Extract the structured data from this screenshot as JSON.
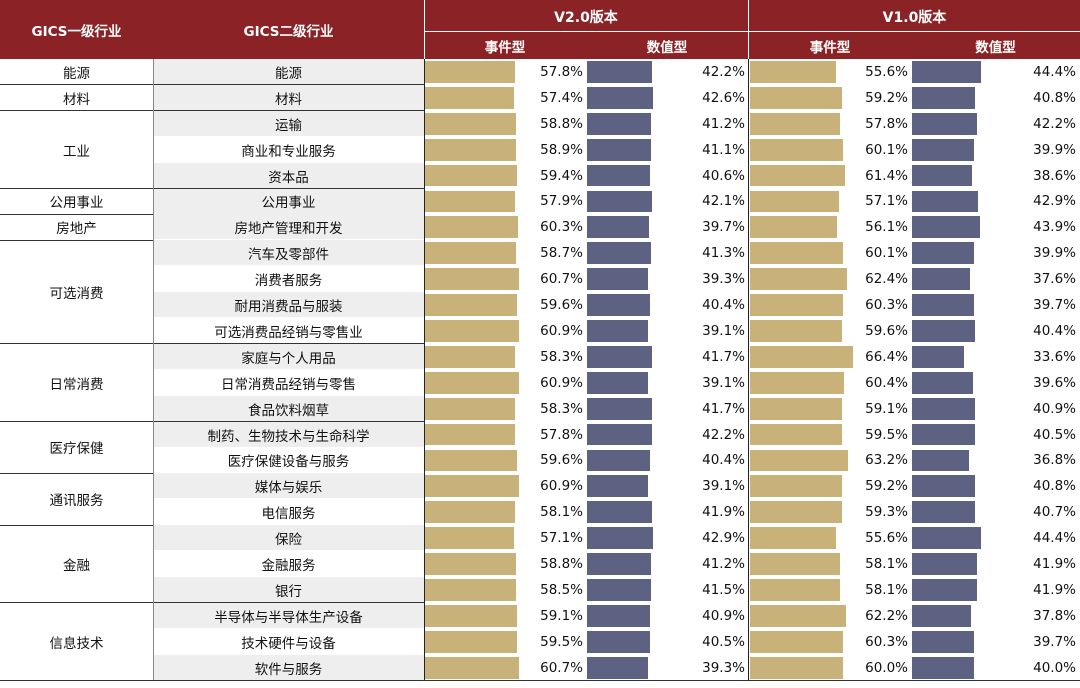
{
  "header": {
    "col1": "GICS一级行业",
    "col2": "GICS二级行业",
    "v2_title": "V2.0版本",
    "v1_title": "V1.0版本",
    "event_label": "事件型",
    "value_label": "数值型"
  },
  "colors": {
    "header_bg": "#8b2326",
    "event_bar": "#c9b27a",
    "value_bar": "#5e6282",
    "stripe": "#eeeeee"
  },
  "chart_data": {
    "type": "table",
    "columns": [
      "GICS一级行业",
      "GICS二级行业",
      "V2.0 事件型",
      "V2.0 数值型",
      "V1.0 事件型",
      "V1.0 数值型"
    ],
    "groups": [
      {
        "name": "能源",
        "rows": [
          {
            "sub": "能源",
            "v2e": 57.8,
            "v2v": 42.2,
            "v1e": 55.6,
            "v1v": 44.4
          }
        ]
      },
      {
        "name": "材料",
        "rows": [
          {
            "sub": "材料",
            "v2e": 57.4,
            "v2v": 42.6,
            "v1e": 59.2,
            "v1v": 40.8
          }
        ]
      },
      {
        "name": "工业",
        "rows": [
          {
            "sub": "运输",
            "v2e": 58.8,
            "v2v": 41.2,
            "v1e": 57.8,
            "v1v": 42.2
          },
          {
            "sub": "商业和专业服务",
            "v2e": 58.9,
            "v2v": 41.1,
            "v1e": 60.1,
            "v1v": 39.9
          },
          {
            "sub": "资本品",
            "v2e": 59.4,
            "v2v": 40.6,
            "v1e": 61.4,
            "v1v": 38.6
          }
        ]
      },
      {
        "name": "公用事业",
        "rows": [
          {
            "sub": "公用事业",
            "v2e": 57.9,
            "v2v": 42.1,
            "v1e": 57.1,
            "v1v": 42.9
          }
        ]
      },
      {
        "name": "房地产",
        "rows": [
          {
            "sub": "房地产管理和开发",
            "v2e": 60.3,
            "v2v": 39.7,
            "v1e": 56.1,
            "v1v": 43.9
          }
        ]
      },
      {
        "name": "可选消费",
        "rows": [
          {
            "sub": "汽车及零部件",
            "v2e": 58.7,
            "v2v": 41.3,
            "v1e": 60.1,
            "v1v": 39.9
          },
          {
            "sub": "消费者服务",
            "v2e": 60.7,
            "v2v": 39.3,
            "v1e": 62.4,
            "v1v": 37.6
          },
          {
            "sub": "耐用消费品与服装",
            "v2e": 59.6,
            "v2v": 40.4,
            "v1e": 60.3,
            "v1v": 39.7
          },
          {
            "sub": "可选消费品经销与零售业",
            "v2e": 60.9,
            "v2v": 39.1,
            "v1e": 59.6,
            "v1v": 40.4
          }
        ]
      },
      {
        "name": "日常消费",
        "rows": [
          {
            "sub": "家庭与个人用品",
            "v2e": 58.3,
            "v2v": 41.7,
            "v1e": 66.4,
            "v1v": 33.6
          },
          {
            "sub": "日常消费品经销与零售",
            "v2e": 60.9,
            "v2v": 39.1,
            "v1e": 60.4,
            "v1v": 39.6
          },
          {
            "sub": "食品饮料烟草",
            "v2e": 58.3,
            "v2v": 41.7,
            "v1e": 59.1,
            "v1v": 40.9
          }
        ]
      },
      {
        "name": "医疗保健",
        "rows": [
          {
            "sub": "制药、生物技术与生命科学",
            "v2e": 57.8,
            "v2v": 42.2,
            "v1e": 59.5,
            "v1v": 40.5
          },
          {
            "sub": "医疗保健设备与服务",
            "v2e": 59.6,
            "v2v": 40.4,
            "v1e": 63.2,
            "v1v": 36.8
          }
        ]
      },
      {
        "name": "通讯服务",
        "rows": [
          {
            "sub": "媒体与娱乐",
            "v2e": 60.9,
            "v2v": 39.1,
            "v1e": 59.2,
            "v1v": 40.8
          },
          {
            "sub": "电信服务",
            "v2e": 58.1,
            "v2v": 41.9,
            "v1e": 59.3,
            "v1v": 40.7
          }
        ]
      },
      {
        "name": "金融",
        "rows": [
          {
            "sub": "保险",
            "v2e": 57.1,
            "v2v": 42.9,
            "v1e": 55.6,
            "v1v": 44.4
          },
          {
            "sub": "金融服务",
            "v2e": 58.8,
            "v2v": 41.2,
            "v1e": 58.1,
            "v1v": 41.9
          },
          {
            "sub": "银行",
            "v2e": 58.5,
            "v2v": 41.5,
            "v1e": 58.1,
            "v1v": 41.9
          }
        ]
      },
      {
        "name": "信息技术",
        "rows": [
          {
            "sub": "半导体与半导体生产设备",
            "v2e": 59.1,
            "v2v": 40.9,
            "v1e": 62.2,
            "v1v": 37.8
          },
          {
            "sub": "技术硬件与设备",
            "v2e": 59.5,
            "v2v": 40.5,
            "v1e": 60.3,
            "v1v": 39.7
          },
          {
            "sub": "软件与服务",
            "v2e": 60.7,
            "v2v": 39.3,
            "v1e": 60.0,
            "v1v": 40.0
          }
        ]
      }
    ]
  }
}
